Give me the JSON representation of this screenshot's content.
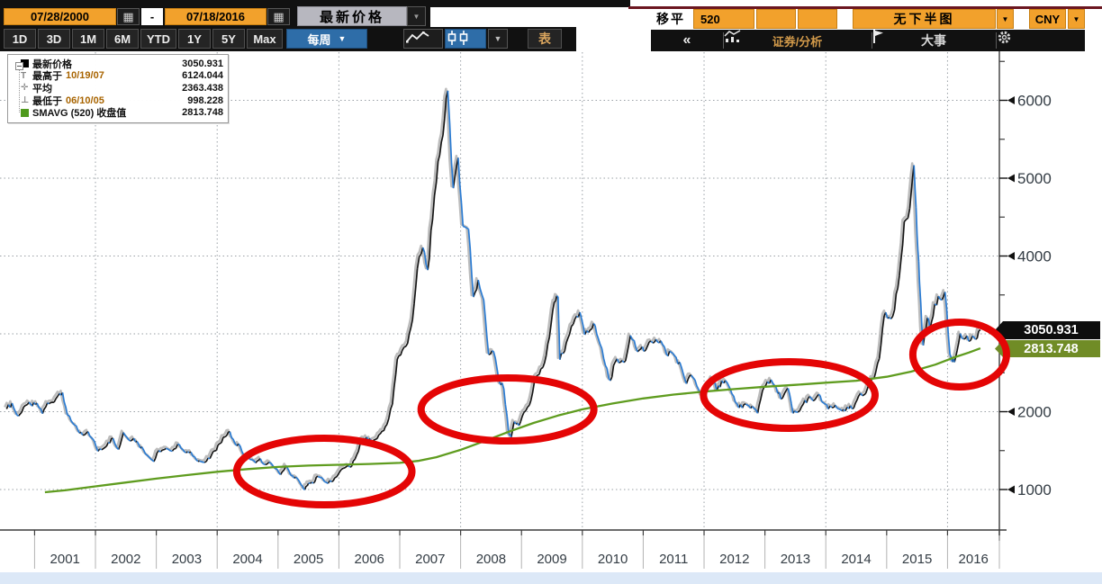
{
  "header": {
    "date_from": "07/28/2000",
    "date_separator": "-",
    "date_to": "07/18/2016",
    "price_mode": "最新价格",
    "range_buttons": [
      "1D",
      "3D",
      "1M",
      "6M",
      "YTD",
      "1Y",
      "5Y",
      "Max"
    ],
    "period_selector": "每周",
    "table_button": "表",
    "ma_label": "移平",
    "ma_period": "520",
    "lower_panel_selector": "无下半图",
    "currency_selector": "CNY",
    "collapse_button": "«",
    "analysis_button": "证券/分析",
    "events_button": "大事"
  },
  "legend": {
    "rows": [
      {
        "label": "最新价格",
        "date": "",
        "value": "3050.931"
      },
      {
        "label": "最高于",
        "date": "10/19/07",
        "value": "6124.044"
      },
      {
        "label": "平均",
        "date": "",
        "value": "2363.438"
      },
      {
        "label": "最低于",
        "date": "06/10/05",
        "value": "998.228"
      },
      {
        "label": "SMAVG (520) 收盘值",
        "date": "",
        "value": "2813.748"
      }
    ]
  },
  "tags": {
    "last_price": "3050.931",
    "sma_value": "2813.748"
  },
  "colors": {
    "accent_orange": "#f2a12c",
    "accent_blue_button": "#2e6da8",
    "price_up": "#161616",
    "price_down": "#2b7cd3",
    "price_shadow": "#bcbcbc",
    "sma_green": "#5f9c1f",
    "annotation_red": "#e40505",
    "tag_black_bg": "#0e0e0e",
    "tag_green_bg": "#708c26",
    "grid_gray": "#9aa0a6",
    "axis_dark": "#3c3c3c",
    "tick_text": "#333c44"
  },
  "chart_data": {
    "type": "line",
    "x_axis_years": [
      "2001",
      "2002",
      "2003",
      "2004",
      "2005",
      "2006",
      "2007",
      "2008",
      "2009",
      "2010",
      "2011",
      "2012",
      "2013",
      "2014",
      "2015",
      "2016"
    ],
    "x_range": [
      2000.55,
      2016.55
    ],
    "ylim": [
      350,
      6550
    ],
    "y_grid": [
      1000,
      2000,
      3000,
      4000,
      5000,
      6000
    ],
    "y_labeled": [
      1000,
      2000,
      4000,
      5000,
      6000
    ],
    "y_minor": [
      1500,
      2500,
      3500,
      4500,
      5500,
      6500
    ],
    "grid_vertical_years": [
      2002,
      2004,
      2006,
      2008,
      2010,
      2012,
      2014,
      2016
    ],
    "legend_position": "top-left",
    "series": [
      {
        "name": "最新价格",
        "style": "weekly-bars",
        "points": [
          [
            2000.54,
            2035
          ],
          [
            2000.63,
            2110
          ],
          [
            2000.71,
            1955
          ],
          [
            2000.79,
            1995
          ],
          [
            2000.88,
            2090
          ],
          [
            2000.96,
            2073
          ],
          [
            2001.04,
            2110
          ],
          [
            2001.13,
            1975
          ],
          [
            2001.21,
            2112
          ],
          [
            2001.29,
            2120
          ],
          [
            2001.38,
            2200
          ],
          [
            2001.46,
            2245
          ],
          [
            2001.54,
            1955
          ],
          [
            2001.63,
            1850
          ],
          [
            2001.71,
            1765
          ],
          [
            2001.79,
            1700
          ],
          [
            2001.88,
            1742
          ],
          [
            2001.96,
            1646
          ],
          [
            2002.04,
            1491
          ],
          [
            2002.13,
            1525
          ],
          [
            2002.21,
            1603
          ],
          [
            2002.29,
            1657
          ],
          [
            2002.38,
            1515
          ],
          [
            2002.46,
            1732
          ],
          [
            2002.54,
            1646
          ],
          [
            2002.63,
            1658
          ],
          [
            2002.71,
            1582
          ],
          [
            2002.79,
            1510
          ],
          [
            2002.88,
            1420
          ],
          [
            2002.96,
            1358
          ],
          [
            2003.04,
            1499
          ],
          [
            2003.13,
            1512
          ],
          [
            2003.21,
            1510
          ],
          [
            2003.29,
            1521
          ],
          [
            2003.38,
            1577
          ],
          [
            2003.46,
            1486
          ],
          [
            2003.54,
            1476
          ],
          [
            2003.63,
            1422
          ],
          [
            2003.71,
            1367
          ],
          [
            2003.79,
            1348
          ],
          [
            2003.88,
            1397
          ],
          [
            2003.96,
            1497
          ],
          [
            2004.04,
            1590
          ],
          [
            2004.13,
            1676
          ],
          [
            2004.21,
            1742
          ],
          [
            2004.29,
            1595
          ],
          [
            2004.38,
            1556
          ],
          [
            2004.46,
            1399
          ],
          [
            2004.54,
            1387
          ],
          [
            2004.63,
            1342
          ],
          [
            2004.71,
            1397
          ],
          [
            2004.79,
            1320
          ],
          [
            2004.88,
            1340
          ],
          [
            2004.96,
            1267
          ],
          [
            2005.04,
            1191
          ],
          [
            2005.13,
            1306
          ],
          [
            2005.21,
            1181
          ],
          [
            2005.29,
            1159
          ],
          [
            2005.38,
            1060
          ],
          [
            2005.44,
            998.228
          ],
          [
            2005.5,
            1081
          ],
          [
            2005.58,
            1083
          ],
          [
            2005.63,
            1163
          ],
          [
            2005.71,
            1155
          ],
          [
            2005.79,
            1092
          ],
          [
            2005.88,
            1099
          ],
          [
            2005.96,
            1161
          ],
          [
            2006.04,
            1258
          ],
          [
            2006.13,
            1299
          ],
          [
            2006.21,
            1298
          ],
          [
            2006.29,
            1440
          ],
          [
            2006.38,
            1641
          ],
          [
            2006.46,
            1672
          ],
          [
            2006.54,
            1613
          ],
          [
            2006.63,
            1658
          ],
          [
            2006.71,
            1752
          ],
          [
            2006.79,
            1837
          ],
          [
            2006.88,
            2099
          ],
          [
            2006.96,
            2675
          ],
          [
            2007.04,
            2786
          ],
          [
            2007.13,
            2881
          ],
          [
            2007.21,
            3183
          ],
          [
            2007.29,
            3841
          ],
          [
            2007.38,
            4109
          ],
          [
            2007.46,
            3820
          ],
          [
            2007.54,
            4471
          ],
          [
            2007.63,
            5218
          ],
          [
            2007.71,
            5552
          ],
          [
            2007.79,
            6124.044
          ],
          [
            2007.88,
            4872
          ],
          [
            2007.96,
            5262
          ],
          [
            2008.04,
            4383
          ],
          [
            2008.13,
            4348
          ],
          [
            2008.21,
            3473
          ],
          [
            2008.29,
            3693
          ],
          [
            2008.38,
            3433
          ],
          [
            2008.46,
            2736
          ],
          [
            2008.54,
            2776
          ],
          [
            2008.63,
            2397
          ],
          [
            2008.71,
            2294
          ],
          [
            2008.79,
            1729
          ],
          [
            2008.83,
            1665
          ],
          [
            2008.88,
            1871
          ],
          [
            2008.96,
            1821
          ],
          [
            2009.04,
            1991
          ],
          [
            2009.13,
            2083
          ],
          [
            2009.21,
            2373
          ],
          [
            2009.29,
            2477
          ],
          [
            2009.38,
            2632
          ],
          [
            2009.46,
            2959
          ],
          [
            2009.54,
            3412
          ],
          [
            2009.6,
            3478
          ],
          [
            2009.63,
            2668
          ],
          [
            2009.71,
            2779
          ],
          [
            2009.79,
            2995
          ],
          [
            2009.88,
            3195
          ],
          [
            2009.96,
            3277
          ],
          [
            2010.04,
            2989
          ],
          [
            2010.13,
            3052
          ],
          [
            2010.21,
            3109
          ],
          [
            2010.29,
            2871
          ],
          [
            2010.38,
            2592
          ],
          [
            2010.46,
            2398
          ],
          [
            2010.54,
            2638
          ],
          [
            2010.63,
            2639
          ],
          [
            2010.71,
            2656
          ],
          [
            2010.79,
            2979
          ],
          [
            2010.88,
            2820
          ],
          [
            2010.96,
            2808
          ],
          [
            2011.04,
            2790
          ],
          [
            2011.13,
            2905
          ],
          [
            2011.21,
            2928
          ],
          [
            2011.29,
            2911
          ],
          [
            2011.38,
            2743
          ],
          [
            2011.46,
            2762
          ],
          [
            2011.54,
            2701
          ],
          [
            2011.63,
            2567
          ],
          [
            2011.71,
            2359
          ],
          [
            2011.79,
            2468
          ],
          [
            2011.88,
            2333
          ],
          [
            2011.96,
            2199
          ],
          [
            2012.04,
            2293
          ],
          [
            2012.13,
            2428
          ],
          [
            2012.21,
            2263
          ],
          [
            2012.29,
            2396
          ],
          [
            2012.38,
            2372
          ],
          [
            2012.46,
            2225
          ],
          [
            2012.54,
            2103
          ],
          [
            2012.63,
            2048
          ],
          [
            2012.71,
            2086
          ],
          [
            2012.79,
            2068
          ],
          [
            2012.88,
            1980
          ],
          [
            2012.96,
            2269
          ],
          [
            2013.04,
            2385
          ],
          [
            2013.13,
            2366
          ],
          [
            2013.21,
            2237
          ],
          [
            2013.29,
            2178
          ],
          [
            2013.38,
            2301
          ],
          [
            2013.46,
            1979
          ],
          [
            2013.54,
            1994
          ],
          [
            2013.63,
            2098
          ],
          [
            2013.71,
            2175
          ],
          [
            2013.79,
            2141
          ],
          [
            2013.88,
            2221
          ],
          [
            2013.96,
            2116
          ],
          [
            2014.04,
            2033
          ],
          [
            2014.13,
            2056
          ],
          [
            2014.21,
            2033
          ],
          [
            2014.29,
            2026
          ],
          [
            2014.38,
            2039
          ],
          [
            2014.46,
            2048
          ],
          [
            2014.54,
            2202
          ],
          [
            2014.63,
            2217
          ],
          [
            2014.71,
            2364
          ],
          [
            2014.79,
            2420
          ],
          [
            2014.88,
            2683
          ],
          [
            2014.96,
            3235
          ],
          [
            2015.04,
            3210
          ],
          [
            2015.13,
            3310
          ],
          [
            2015.21,
            3748
          ],
          [
            2015.29,
            4442
          ],
          [
            2015.38,
            4612
          ],
          [
            2015.45,
            5166
          ],
          [
            2015.5,
            4277
          ],
          [
            2015.54,
            3664
          ],
          [
            2015.6,
            2851
          ],
          [
            2015.67,
            3206
          ],
          [
            2015.71,
            3053
          ],
          [
            2015.79,
            3383
          ],
          [
            2015.88,
            3445
          ],
          [
            2015.96,
            3539
          ],
          [
            2016.04,
            2738
          ],
          [
            2016.08,
            2638
          ],
          [
            2016.13,
            2688
          ],
          [
            2016.21,
            3004
          ],
          [
            2016.29,
            2938
          ],
          [
            2016.38,
            2917
          ],
          [
            2016.46,
            2930
          ],
          [
            2016.54,
            3050.931
          ]
        ],
        "stats": {
          "last": 3050.931,
          "high": 6124.044,
          "high_date": "10/19/07",
          "mean": 2363.438,
          "low": 998.228,
          "low_date": "06/10/05"
        }
      },
      {
        "name": "SMAVG (520) 收盘值",
        "style": "line",
        "last": 2813.748,
        "points": [
          [
            2001.17,
            965
          ],
          [
            2001.5,
            990
          ],
          [
            2002,
            1040
          ],
          [
            2002.5,
            1090
          ],
          [
            2003,
            1140
          ],
          [
            2003.5,
            1185
          ],
          [
            2004,
            1228
          ],
          [
            2004.5,
            1262
          ],
          [
            2005,
            1290
          ],
          [
            2005.5,
            1308
          ],
          [
            2006,
            1318
          ],
          [
            2006.5,
            1328
          ],
          [
            2007,
            1342
          ],
          [
            2007.3,
            1368
          ],
          [
            2007.6,
            1415
          ],
          [
            2008,
            1510
          ],
          [
            2008.4,
            1625
          ],
          [
            2008.8,
            1745
          ],
          [
            2009.2,
            1855
          ],
          [
            2009.6,
            1950
          ],
          [
            2010,
            2030
          ],
          [
            2010.5,
            2105
          ],
          [
            2011,
            2170
          ],
          [
            2011.5,
            2220
          ],
          [
            2012,
            2258
          ],
          [
            2012.5,
            2290
          ],
          [
            2013,
            2320
          ],
          [
            2013.5,
            2345
          ],
          [
            2014,
            2372
          ],
          [
            2014.5,
            2398
          ],
          [
            2015,
            2448
          ],
          [
            2015.4,
            2515
          ],
          [
            2015.8,
            2605
          ],
          [
            2016.1,
            2695
          ],
          [
            2016.35,
            2760
          ],
          [
            2016.54,
            2813.748
          ]
        ]
      }
    ],
    "annotations": {
      "ellipses": [
        {
          "x": 2005.76,
          "y": 1231,
          "rx_years": 1.44,
          "ry_value": 428
        },
        {
          "x": 2008.77,
          "y": 2029,
          "rx_years": 1.42,
          "ry_value": 405
        },
        {
          "x": 2013.4,
          "y": 2214,
          "rx_years": 1.41,
          "ry_value": 428
        },
        {
          "x": 2016.2,
          "y": 2734,
          "rx_years": 0.77,
          "ry_value": 416
        }
      ]
    }
  }
}
